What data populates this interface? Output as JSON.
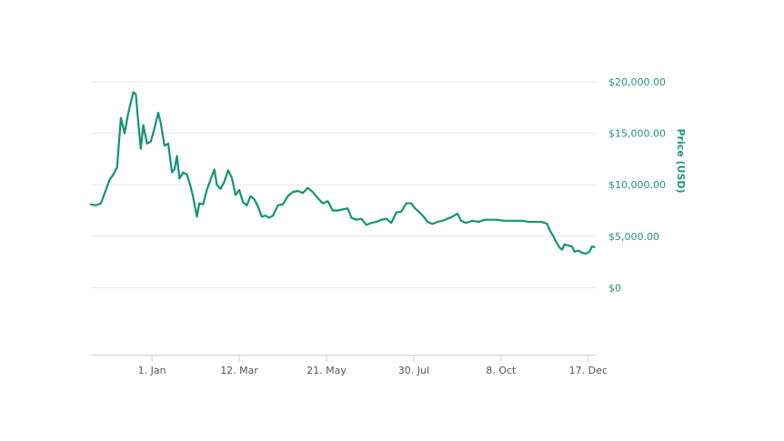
{
  "chart_data": {
    "type": "line",
    "ylabel": "Price (USD)",
    "ylim": [
      -6500,
      20000
    ],
    "grid": true,
    "y_ticks": [
      {
        "value": 20000,
        "label": "$20,000.00"
      },
      {
        "value": 15000,
        "label": "$15,000.00"
      },
      {
        "value": 10000,
        "label": "$10,000.00"
      },
      {
        "value": 5000,
        "label": "$5,000.00"
      },
      {
        "value": 0,
        "label": "$0"
      }
    ],
    "x_ticks": [
      {
        "date": "2018-01-01",
        "label": "1. Jan"
      },
      {
        "date": "2018-03-12",
        "label": "12. Mar"
      },
      {
        "date": "2018-05-21",
        "label": "21. May"
      },
      {
        "date": "2018-07-30",
        "label": "30. Jul"
      },
      {
        "date": "2018-10-08",
        "label": "8. Oct"
      },
      {
        "date": "2018-12-17",
        "label": "17. Dec"
      }
    ],
    "xlim": [
      "2017-11-13",
      "2018-12-23"
    ],
    "colors": {
      "line": "#119471",
      "axis_text": "#1e9479",
      "tick_text": "#555555"
    },
    "series": [
      {
        "values": [
          [
            "2017-11-13",
            8100
          ],
          [
            "2017-11-17",
            8000
          ],
          [
            "2017-11-21",
            8200
          ],
          [
            "2017-11-25",
            9500
          ],
          [
            "2017-11-28",
            10500
          ],
          [
            "2017-12-01",
            11000
          ],
          [
            "2017-12-04",
            11700
          ],
          [
            "2017-12-07",
            16500
          ],
          [
            "2017-12-10",
            15000
          ],
          [
            "2017-12-13",
            17000
          ],
          [
            "2017-12-17",
            19000
          ],
          [
            "2017-12-19",
            18800
          ],
          [
            "2017-12-21",
            16000
          ],
          [
            "2017-12-23",
            13500
          ],
          [
            "2017-12-25",
            15800
          ],
          [
            "2017-12-28",
            14000
          ],
          [
            "2017-12-31",
            14200
          ],
          [
            "2018-01-03",
            15500
          ],
          [
            "2018-01-06",
            17000
          ],
          [
            "2018-01-08",
            16000
          ],
          [
            "2018-01-11",
            13800
          ],
          [
            "2018-01-14",
            14000
          ],
          [
            "2018-01-17",
            11200
          ],
          [
            "2018-01-19",
            11500
          ],
          [
            "2018-01-21",
            12800
          ],
          [
            "2018-01-23",
            10600
          ],
          [
            "2018-01-26",
            11200
          ],
          [
            "2018-01-29",
            11000
          ],
          [
            "2018-02-01",
            9800
          ],
          [
            "2018-02-03",
            8800
          ],
          [
            "2018-02-06",
            6900
          ],
          [
            "2018-02-08",
            8200
          ],
          [
            "2018-02-11",
            8100
          ],
          [
            "2018-02-14",
            9500
          ],
          [
            "2018-02-17",
            10500
          ],
          [
            "2018-02-20",
            11500
          ],
          [
            "2018-02-22",
            10000
          ],
          [
            "2018-02-25",
            9600
          ],
          [
            "2018-02-28",
            10300
          ],
          [
            "2018-03-03",
            11400
          ],
          [
            "2018-03-06",
            10700
          ],
          [
            "2018-03-09",
            9000
          ],
          [
            "2018-03-12",
            9500
          ],
          [
            "2018-03-15",
            8300
          ],
          [
            "2018-03-18",
            8000
          ],
          [
            "2018-03-21",
            8900
          ],
          [
            "2018-03-24",
            8600
          ],
          [
            "2018-03-27",
            7900
          ],
          [
            "2018-03-30",
            6900
          ],
          [
            "2018-04-02",
            7000
          ],
          [
            "2018-04-05",
            6800
          ],
          [
            "2018-04-08",
            7000
          ],
          [
            "2018-04-12",
            8000
          ],
          [
            "2018-04-16",
            8100
          ],
          [
            "2018-04-20",
            8900
          ],
          [
            "2018-04-24",
            9300
          ],
          [
            "2018-04-28",
            9400
          ],
          [
            "2018-05-02",
            9200
          ],
          [
            "2018-05-06",
            9700
          ],
          [
            "2018-05-10",
            9300
          ],
          [
            "2018-05-14",
            8700
          ],
          [
            "2018-05-18",
            8200
          ],
          [
            "2018-05-22",
            8400
          ],
          [
            "2018-05-26",
            7500
          ],
          [
            "2018-05-30",
            7500
          ],
          [
            "2018-06-03",
            7600
          ],
          [
            "2018-06-07",
            7700
          ],
          [
            "2018-06-10",
            6800
          ],
          [
            "2018-06-14",
            6600
          ],
          [
            "2018-06-18",
            6700
          ],
          [
            "2018-06-22",
            6100
          ],
          [
            "2018-06-26",
            6300
          ],
          [
            "2018-06-30",
            6400
          ],
          [
            "2018-07-04",
            6600
          ],
          [
            "2018-07-08",
            6700
          ],
          [
            "2018-07-12",
            6300
          ],
          [
            "2018-07-16",
            7300
          ],
          [
            "2018-07-20",
            7400
          ],
          [
            "2018-07-24",
            8200
          ],
          [
            "2018-07-28",
            8200
          ],
          [
            "2018-07-31",
            7700
          ],
          [
            "2018-08-03",
            7400
          ],
          [
            "2018-08-07",
            6900
          ],
          [
            "2018-08-10",
            6400
          ],
          [
            "2018-08-14",
            6200
          ],
          [
            "2018-08-18",
            6400
          ],
          [
            "2018-08-22",
            6500
          ],
          [
            "2018-08-26",
            6700
          ],
          [
            "2018-08-30",
            6900
          ],
          [
            "2018-09-03",
            7200
          ],
          [
            "2018-09-06",
            6500
          ],
          [
            "2018-09-10",
            6300
          ],
          [
            "2018-09-15",
            6500
          ],
          [
            "2018-09-20",
            6400
          ],
          [
            "2018-09-25",
            6600
          ],
          [
            "2018-09-30",
            6600
          ],
          [
            "2018-10-05",
            6600
          ],
          [
            "2018-10-10",
            6500
          ],
          [
            "2018-10-15",
            6500
          ],
          [
            "2018-10-20",
            6500
          ],
          [
            "2018-10-25",
            6500
          ],
          [
            "2018-10-30",
            6400
          ],
          [
            "2018-11-04",
            6400
          ],
          [
            "2018-11-09",
            6400
          ],
          [
            "2018-11-12",
            6300
          ],
          [
            "2018-11-14",
            6200
          ],
          [
            "2018-11-16",
            5600
          ],
          [
            "2018-11-19",
            5000
          ],
          [
            "2018-11-21",
            4500
          ],
          [
            "2018-11-24",
            3900
          ],
          [
            "2018-11-26",
            3700
          ],
          [
            "2018-11-28",
            4200
          ],
          [
            "2018-12-01",
            4100
          ],
          [
            "2018-12-04",
            4000
          ],
          [
            "2018-12-06",
            3500
          ],
          [
            "2018-12-09",
            3600
          ],
          [
            "2018-12-12",
            3400
          ],
          [
            "2018-12-15",
            3300
          ],
          [
            "2018-12-18",
            3500
          ],
          [
            "2018-12-20",
            4000
          ],
          [
            "2018-12-22",
            3950
          ]
        ]
      }
    ]
  }
}
